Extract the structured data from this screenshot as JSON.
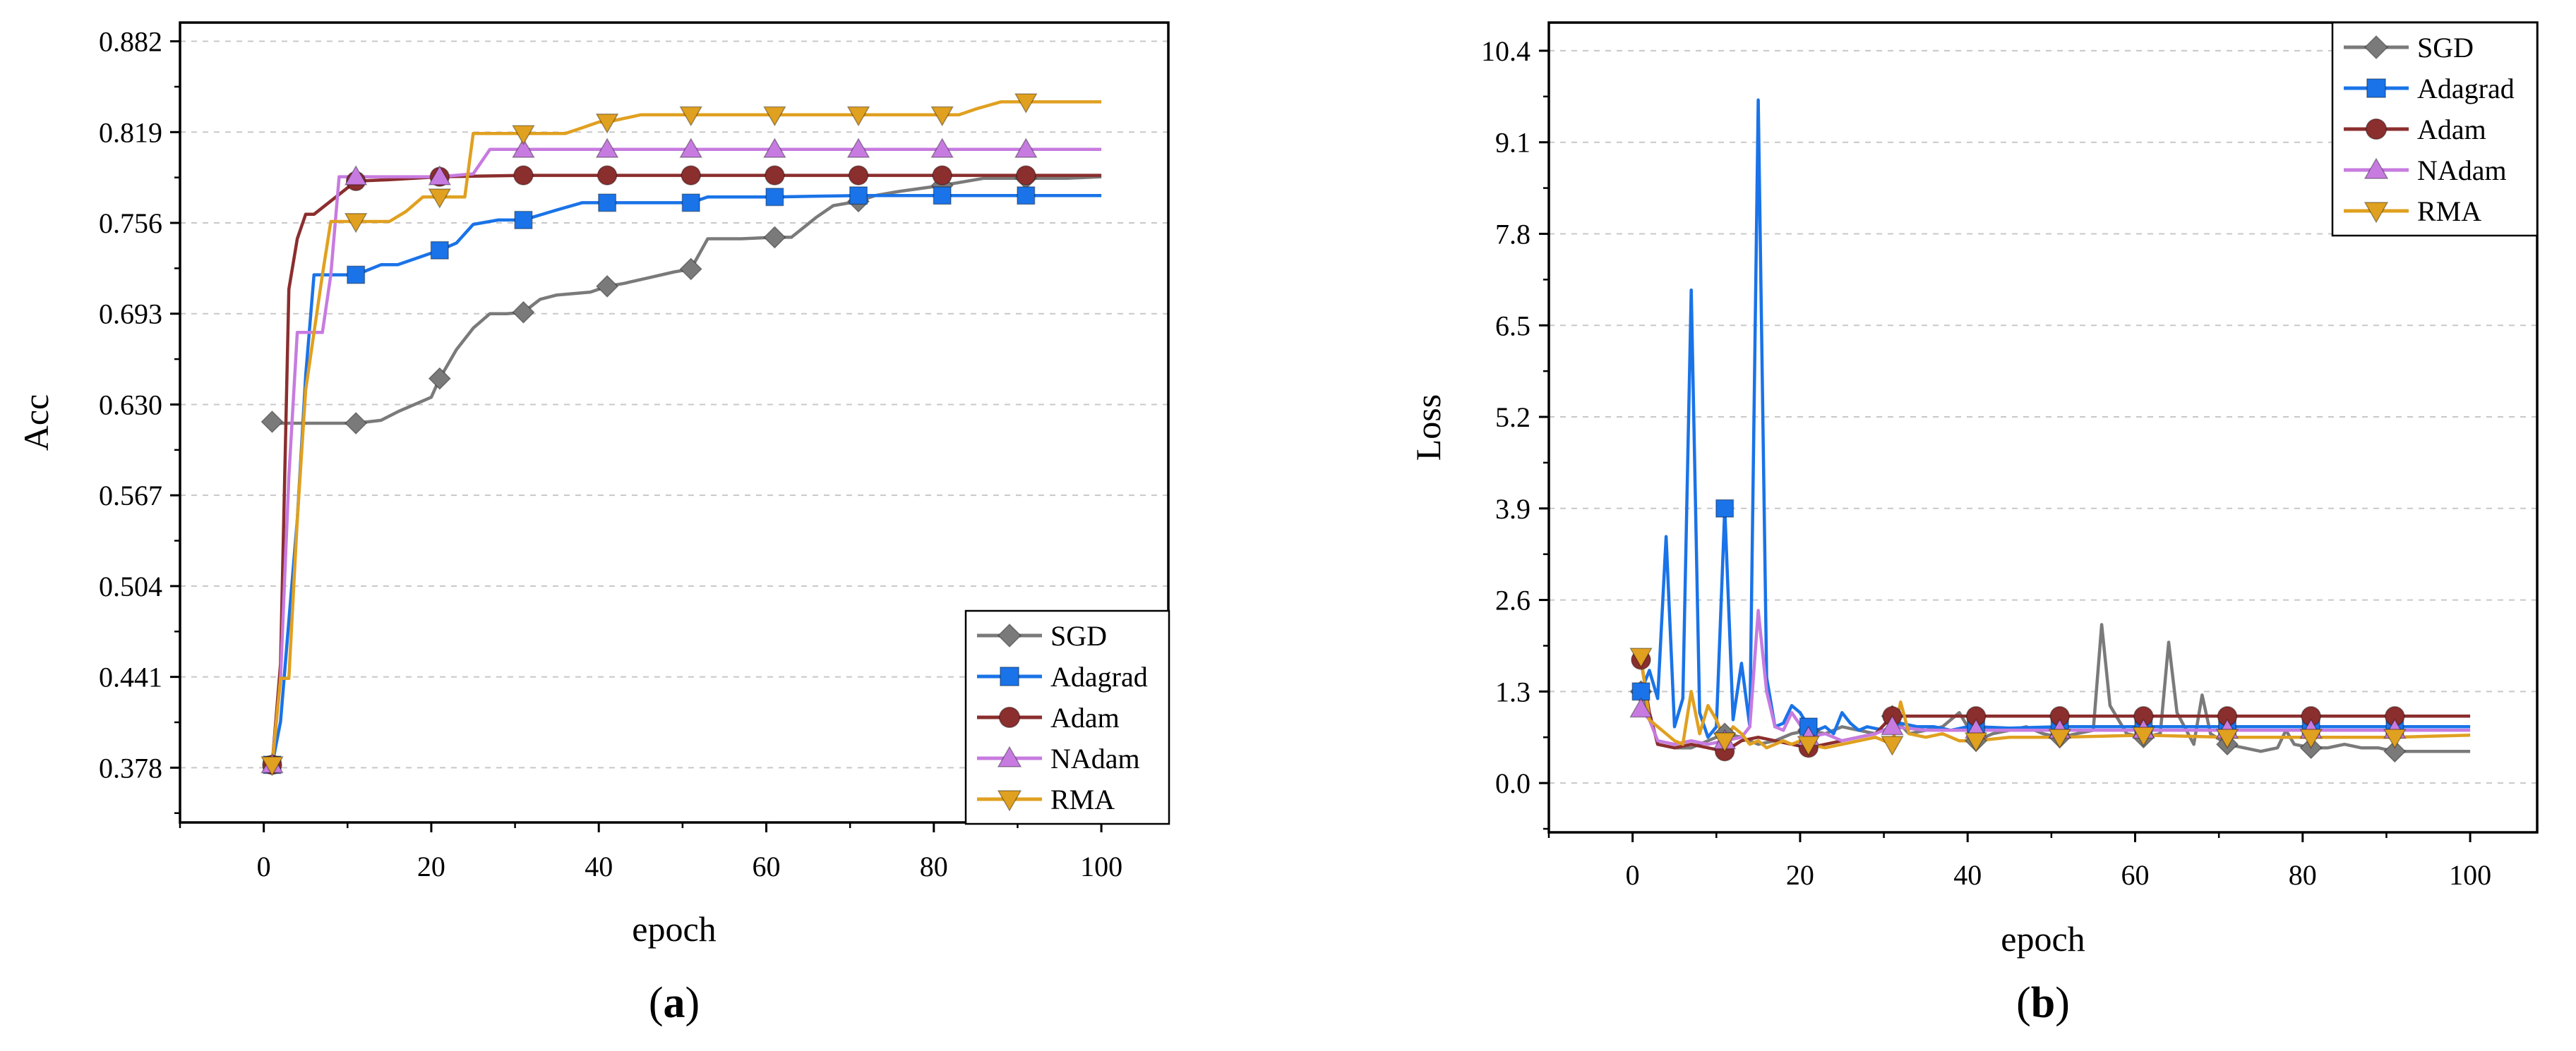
{
  "chart_data": [
    {
      "type": "line",
      "panel_label": "(a)",
      "xlabel": "epoch",
      "ylabel": "Acc",
      "xlim": [
        -10,
        108
      ],
      "ylim": [
        0.34,
        0.895
      ],
      "xticks": [
        0,
        20,
        40,
        60,
        80,
        100
      ],
      "xtick_labels": [
        "0",
        "20",
        "40",
        "60",
        "80",
        "100"
      ],
      "yticks": [
        0.378,
        0.441,
        0.504,
        0.567,
        0.63,
        0.693,
        0.756,
        0.819,
        0.882
      ],
      "ytick_labels": [
        "0.378",
        "0.441",
        "0.504",
        "0.567",
        "0.630",
        "0.693",
        "0.756",
        "0.819",
        "0.882"
      ],
      "grid": true,
      "legend_position": "bottom-right",
      "series": [
        {
          "name": "SGD",
          "color": "#7a7a7a",
          "marker": "diamond",
          "x": [
            1,
            2,
            11,
            14,
            16,
            20,
            21,
            23,
            25,
            27,
            29,
            31,
            33,
            35,
            39,
            41,
            43,
            46,
            49,
            51,
            53,
            57,
            61,
            63,
            66,
            68,
            71,
            73,
            76,
            81,
            86,
            91,
            96,
            100
          ],
          "values": [
            0.618,
            0.617,
            0.617,
            0.619,
            0.625,
            0.635,
            0.648,
            0.668,
            0.683,
            0.693,
            0.693,
            0.694,
            0.703,
            0.706,
            0.708,
            0.712,
            0.714,
            0.718,
            0.722,
            0.724,
            0.745,
            0.745,
            0.746,
            0.746,
            0.76,
            0.768,
            0.771,
            0.775,
            0.778,
            0.782,
            0.787,
            0.787,
            0.787,
            0.788
          ]
        },
        {
          "name": "Adagrad",
          "color": "#1a73e8",
          "marker": "square",
          "x": [
            1,
            2,
            3,
            4,
            5,
            6,
            11,
            14,
            16,
            21,
            23,
            25,
            28,
            31,
            35,
            38,
            41,
            45,
            51,
            53,
            56,
            61,
            71,
            81,
            91,
            100
          ],
          "values": [
            0.38,
            0.41,
            0.48,
            0.55,
            0.65,
            0.72,
            0.72,
            0.727,
            0.727,
            0.737,
            0.742,
            0.755,
            0.758,
            0.758,
            0.765,
            0.77,
            0.77,
            0.77,
            0.77,
            0.774,
            0.774,
            0.774,
            0.775,
            0.775,
            0.775,
            0.775
          ]
        },
        {
          "name": "Adam",
          "color": "#8b2e2e",
          "marker": "circle",
          "x": [
            1,
            2,
            3,
            4,
            5,
            6,
            11,
            15,
            21,
            31,
            41,
            51,
            61,
            71,
            81,
            91,
            100
          ],
          "values": [
            0.38,
            0.45,
            0.71,
            0.745,
            0.762,
            0.762,
            0.785,
            0.786,
            0.788,
            0.789,
            0.789,
            0.789,
            0.789,
            0.789,
            0.789,
            0.789,
            0.789
          ]
        },
        {
          "name": "NAdam",
          "color": "#c77be0",
          "marker": "triangle-up",
          "x": [
            1,
            2,
            3,
            4,
            5,
            6,
            7,
            8,
            9,
            11,
            21,
            25,
            27,
            31,
            41,
            51,
            61,
            71,
            81,
            91,
            100
          ],
          "values": [
            0.38,
            0.44,
            0.58,
            0.68,
            0.68,
            0.68,
            0.68,
            0.72,
            0.788,
            0.788,
            0.788,
            0.79,
            0.807,
            0.807,
            0.807,
            0.807,
            0.807,
            0.807,
            0.807,
            0.807,
            0.807
          ]
        },
        {
          "name": "RMA",
          "color": "#e0a020",
          "marker": "triangle-down",
          "x": [
            1,
            2,
            3,
            4,
            5,
            6,
            7,
            8,
            11,
            15,
            17,
            19,
            21,
            24,
            25,
            28,
            31,
            33,
            36,
            38,
            40,
            41,
            45,
            51,
            61,
            71,
            81,
            83,
            85,
            88,
            91,
            100
          ],
          "values": [
            0.38,
            0.44,
            0.44,
            0.55,
            0.64,
            0.68,
            0.72,
            0.757,
            0.757,
            0.757,
            0.764,
            0.774,
            0.774,
            0.774,
            0.818,
            0.818,
            0.818,
            0.818,
            0.818,
            0.822,
            0.826,
            0.826,
            0.831,
            0.831,
            0.831,
            0.831,
            0.831,
            0.831,
            0.835,
            0.84,
            0.84,
            0.84
          ]
        }
      ]
    },
    {
      "type": "line",
      "panel_label": "(b)",
      "xlabel": "epoch",
      "ylabel": "Loss",
      "xlim": [
        -10,
        108
      ],
      "ylim": [
        -0.7,
        10.8
      ],
      "xticks": [
        0,
        20,
        40,
        60,
        80,
        100
      ],
      "xtick_labels": [
        "0",
        "20",
        "40",
        "60",
        "80",
        "100"
      ],
      "yticks": [
        0.0,
        1.3,
        2.6,
        3.9,
        5.2,
        6.5,
        7.8,
        9.1,
        10.4
      ],
      "ytick_labels": [
        "0.0",
        "1.3",
        "2.6",
        "3.9",
        "5.2",
        "6.5",
        "7.8",
        "9.1",
        "10.4"
      ],
      "grid": true,
      "legend_position": "top-right",
      "series": [
        {
          "name": "SGD",
          "color": "#7a7a7a",
          "marker": "diamond",
          "x": [
            1,
            2,
            3,
            5,
            7,
            9,
            11,
            13,
            15,
            17,
            19,
            21,
            23,
            25,
            27,
            29,
            31,
            33,
            35,
            37,
            39,
            41,
            43,
            45,
            47,
            49,
            51,
            53,
            55,
            56,
            57,
            59,
            61,
            63,
            64,
            65,
            67,
            68,
            69,
            71,
            73,
            75,
            77,
            78,
            79,
            81,
            83,
            85,
            87,
            89,
            91,
            95,
            100
          ],
          "values": [
            1.3,
            1.0,
            0.55,
            0.5,
            0.5,
            0.6,
            0.7,
            0.65,
            0.55,
            0.6,
            0.7,
            0.75,
            0.7,
            0.8,
            0.75,
            0.7,
            0.95,
            0.7,
            0.75,
            0.8,
            1.0,
            0.6,
            0.7,
            0.75,
            0.8,
            0.7,
            0.65,
            0.7,
            0.75,
            2.25,
            1.1,
            0.7,
            0.65,
            0.7,
            2.0,
            1.0,
            0.55,
            1.25,
            0.7,
            0.55,
            0.5,
            0.45,
            0.5,
            0.75,
            0.55,
            0.5,
            0.5,
            0.55,
            0.5,
            0.5,
            0.45,
            0.45,
            0.45
          ]
        },
        {
          "name": "Adagrad",
          "color": "#1a73e8",
          "marker": "square",
          "x": [
            1,
            2,
            3,
            4,
            5,
            6,
            7,
            8,
            9,
            10,
            11,
            12,
            13,
            14,
            15,
            16,
            17,
            18,
            19,
            20,
            21,
            22,
            23,
            24,
            25,
            26,
            27,
            28,
            30,
            32,
            34,
            36,
            38,
            40,
            41,
            45,
            51,
            61,
            71,
            81,
            91,
            100
          ],
          "values": [
            1.3,
            1.6,
            1.2,
            3.5,
            0.8,
            1.2,
            7.0,
            1.0,
            0.65,
            0.8,
            3.9,
            0.9,
            1.7,
            0.8,
            9.7,
            1.5,
            0.8,
            0.85,
            1.1,
            1.0,
            0.8,
            0.75,
            0.8,
            0.7,
            1.0,
            0.85,
            0.75,
            0.8,
            0.75,
            0.85,
            0.8,
            0.8,
            0.75,
            0.8,
            0.8,
            0.78,
            0.8,
            0.8,
            0.8,
            0.8,
            0.8,
            0.8
          ]
        },
        {
          "name": "Adam",
          "color": "#8b2e2e",
          "marker": "circle",
          "x": [
            1,
            2,
            3,
            5,
            7,
            9,
            11,
            13,
            15,
            17,
            19,
            21,
            23,
            25,
            27,
            29,
            31,
            35,
            41,
            51,
            61,
            71,
            81,
            91,
            100
          ],
          "values": [
            1.75,
            1.0,
            0.55,
            0.5,
            0.55,
            0.5,
            0.45,
            0.6,
            0.65,
            0.6,
            0.55,
            0.5,
            0.55,
            0.6,
            0.65,
            0.7,
            0.95,
            0.95,
            0.95,
            0.95,
            0.95,
            0.95,
            0.95,
            0.95,
            0.95
          ]
        },
        {
          "name": "NAdam",
          "color": "#c77be0",
          "marker": "triangle-up",
          "x": [
            1,
            2,
            3,
            5,
            7,
            9,
            11,
            13,
            14,
            15,
            16,
            17,
            18,
            19,
            21,
            23,
            25,
            27,
            29,
            31,
            35,
            41,
            51,
            61,
            71,
            81,
            91,
            100
          ],
          "values": [
            1.05,
            0.9,
            0.6,
            0.55,
            0.6,
            0.55,
            0.6,
            0.65,
            0.8,
            2.45,
            1.3,
            0.8,
            0.75,
            1.0,
            0.65,
            0.7,
            0.6,
            0.65,
            0.7,
            0.8,
            0.75,
            0.75,
            0.75,
            0.75,
            0.75,
            0.75,
            0.75,
            0.75
          ]
        },
        {
          "name": "RMA",
          "color": "#e0a020",
          "marker": "triangle-down",
          "x": [
            1,
            2,
            3,
            4,
            5,
            6,
            7,
            8,
            9,
            10,
            11,
            12,
            13,
            14,
            15,
            16,
            17,
            18,
            19,
            20,
            21,
            23,
            25,
            27,
            29,
            31,
            32,
            33,
            35,
            37,
            39,
            41,
            45,
            51,
            61,
            71,
            81,
            91,
            100
          ],
          "values": [
            1.8,
            0.9,
            0.8,
            0.7,
            0.6,
            0.55,
            1.3,
            0.7,
            1.1,
            0.9,
            0.6,
            0.8,
            0.7,
            0.55,
            0.6,
            0.5,
            0.55,
            0.6,
            0.55,
            0.6,
            0.55,
            0.5,
            0.55,
            0.6,
            0.65,
            0.55,
            1.15,
            0.7,
            0.65,
            0.7,
            0.6,
            0.6,
            0.65,
            0.65,
            0.68,
            0.65,
            0.65,
            0.65,
            0.68
          ]
        }
      ]
    }
  ]
}
